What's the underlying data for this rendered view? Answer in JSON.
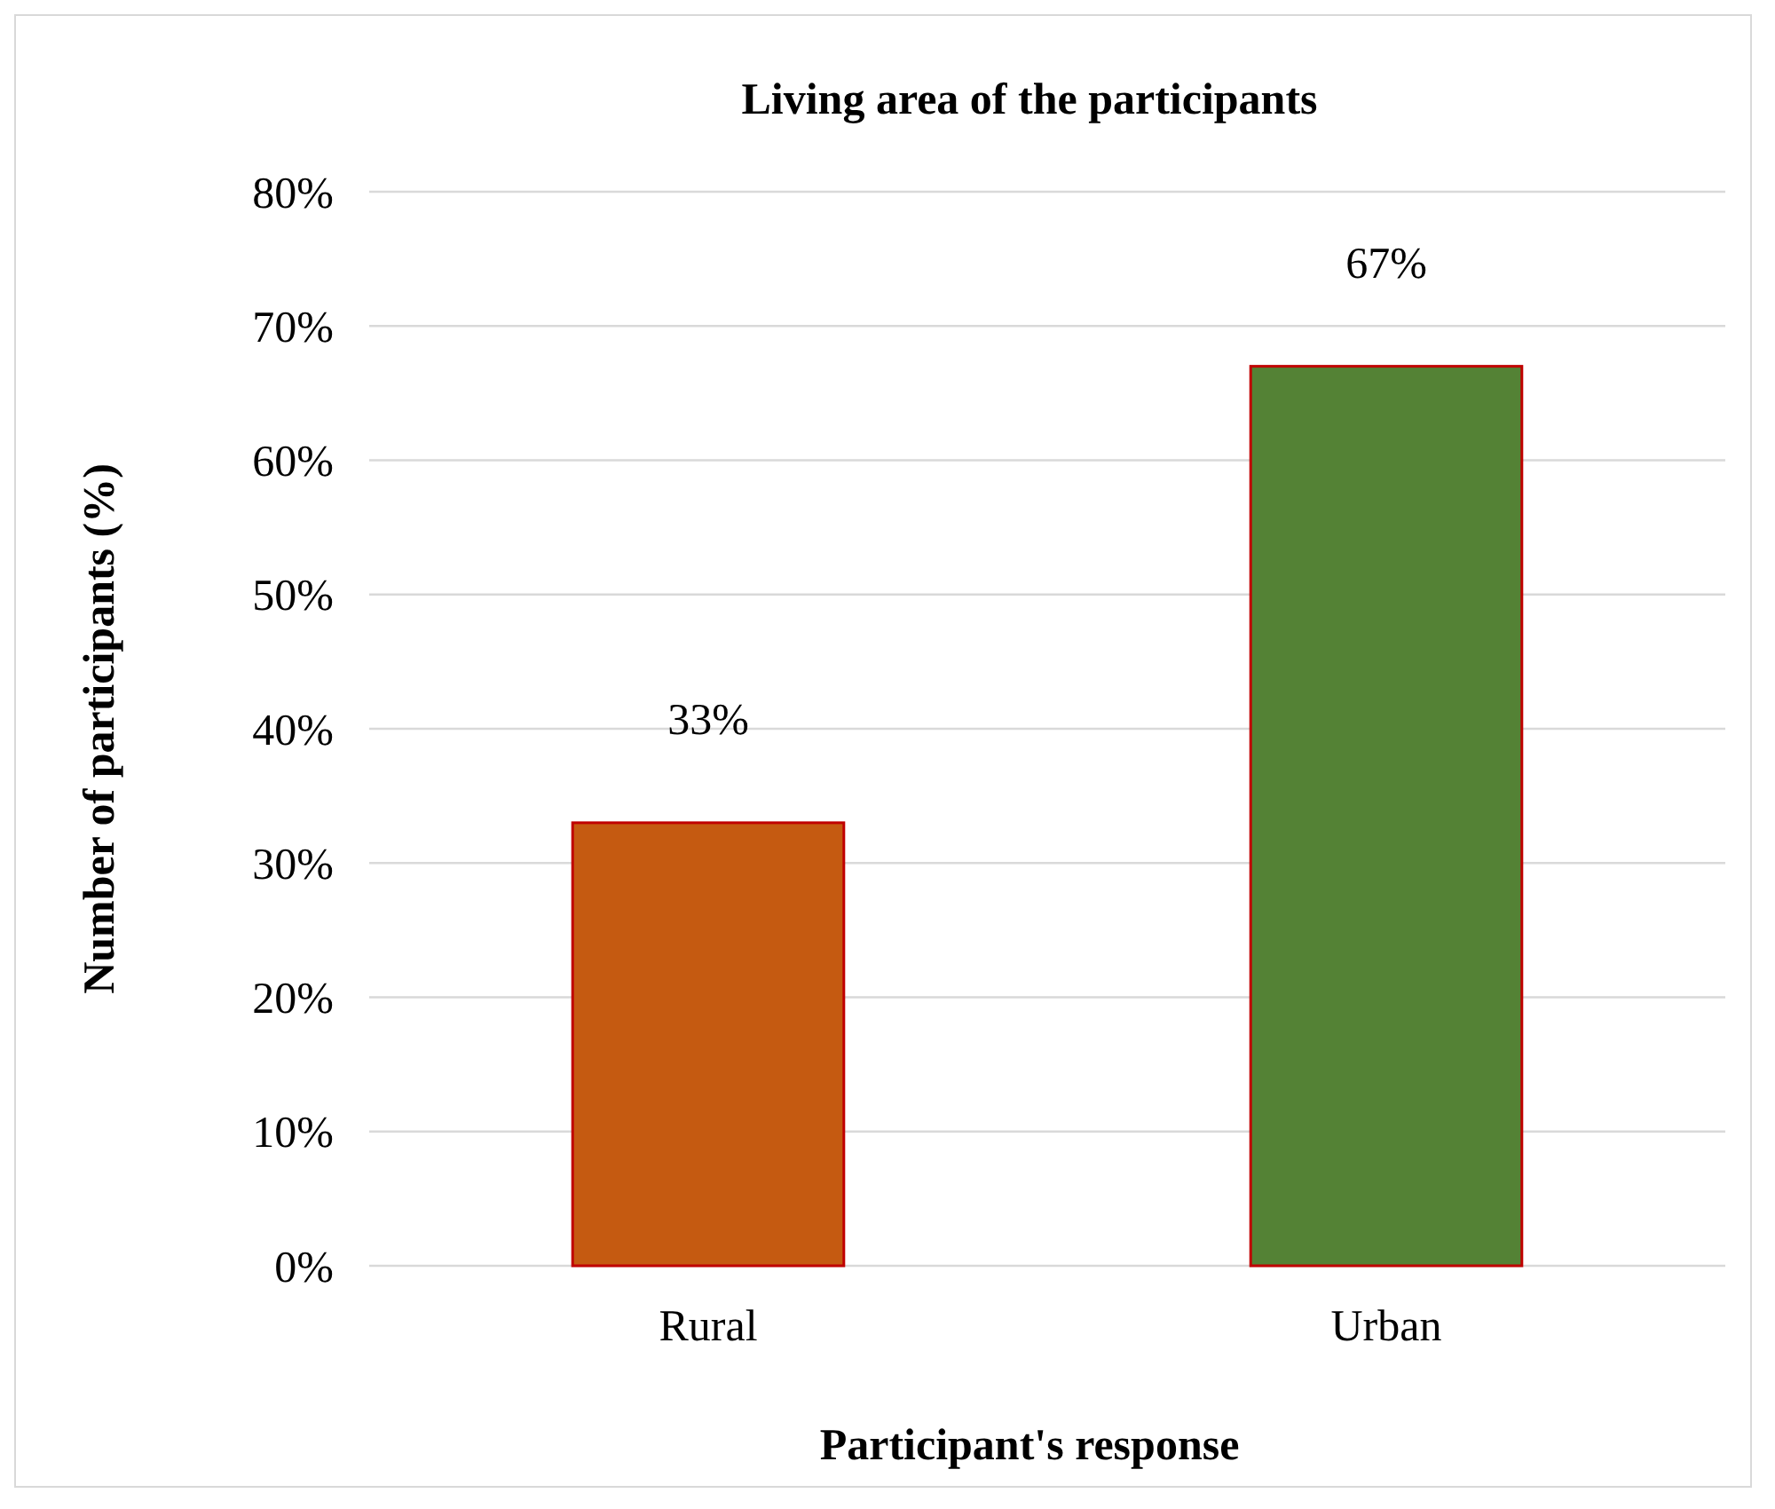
{
  "chart_data": {
    "type": "bar",
    "title": "Living area of the participants",
    "xlabel": "Participant's response",
    "ylabel": "Number of participants (%)",
    "categories": [
      "Rural",
      "Urban"
    ],
    "values": [
      33,
      67
    ],
    "colors": [
      "#c55a11",
      "#548235"
    ],
    "value_labels": [
      "33%",
      "67%"
    ],
    "ylim": [
      0,
      80
    ],
    "yticks": [
      {
        "value": 0,
        "label": "0%"
      },
      {
        "value": 10,
        "label": "10%"
      },
      {
        "value": 20,
        "label": "20%"
      },
      {
        "value": 30,
        "label": "30%"
      },
      {
        "value": 40,
        "label": "40%"
      },
      {
        "value": 50,
        "label": "50%"
      },
      {
        "value": 60,
        "label": "60%"
      },
      {
        "value": 70,
        "label": "70%"
      },
      {
        "value": 80,
        "label": "80%"
      }
    ],
    "grid": "y"
  }
}
